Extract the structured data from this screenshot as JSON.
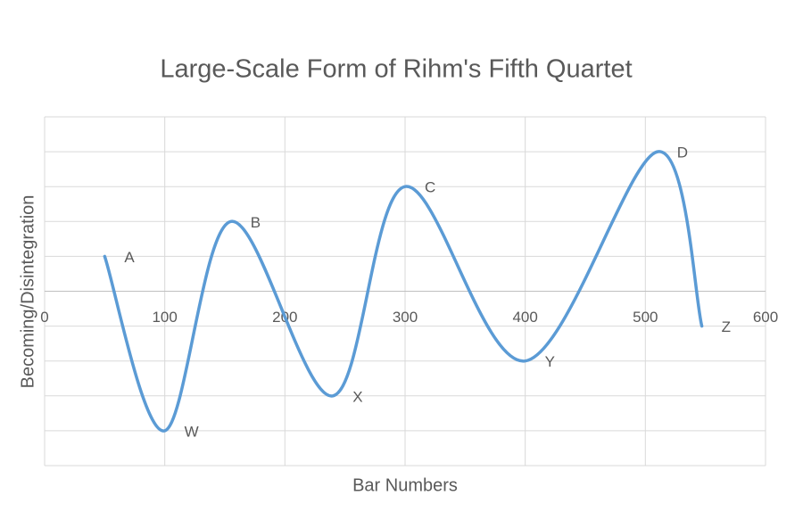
{
  "chart_data": {
    "type": "line",
    "title": "Large-Scale Form of Rihm's Fifth Quartet",
    "x_label": "Bar Numbers",
    "y_label": "Becoming/Disintegration",
    "smooth": true,
    "series": [
      {
        "color": "#5b9bd5",
        "x": [
          50,
          100,
          155,
          240,
          300,
          400,
          510,
          547
        ],
        "values": [
          1,
          -4,
          2,
          -3,
          3,
          -2,
          4,
          -1
        ],
        "point_labels": [
          "A",
          "W",
          "B",
          "X",
          "C",
          "Y",
          "D",
          "Z"
        ]
      }
    ],
    "xlim": [
      0,
      600
    ],
    "xticks": [
      0,
      100,
      200,
      300,
      400,
      500,
      600
    ],
    "ylim": [
      -5,
      5
    ],
    "y_gridlines": [
      -5,
      -4,
      -3,
      -2,
      -1,
      0,
      1,
      2,
      3,
      4,
      5
    ],
    "grid": true
  }
}
